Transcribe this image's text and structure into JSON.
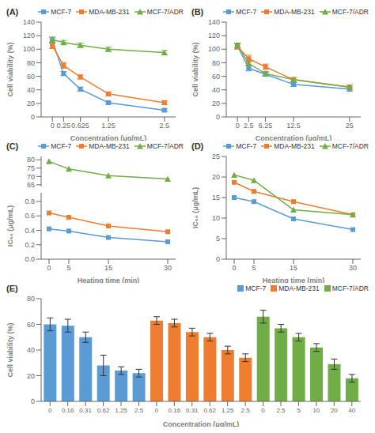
{
  "chart_data": [
    {
      "type": "line",
      "title": "(A)",
      "x": [
        0,
        0.25,
        0.625,
        1.25,
        2.5
      ],
      "xlim": [
        -0.25,
        2.75
      ],
      "xticks": [
        0,
        0.25,
        0.625,
        1.25,
        2.5
      ],
      "xlabel": "Concentration (μg/mL)",
      "ylabel": "Cell viability (%)",
      "ylim": [
        0,
        140
      ],
      "yticks": [
        0,
        20,
        40,
        60,
        80,
        100,
        120,
        140
      ],
      "grid": false,
      "legend": "upper right",
      "series": [
        {
          "name": "MCF-7",
          "color": "#5B9BD5",
          "marker": "square",
          "values": [
            113,
            64,
            41,
            21,
            10
          ],
          "errors": [
            4,
            3,
            3,
            2,
            2
          ]
        },
        {
          "name": "MDA-MB-231",
          "color": "#ED7D31",
          "marker": "square",
          "values": [
            105,
            76,
            59,
            34,
            21
          ],
          "errors": [
            4,
            4,
            3,
            3,
            3
          ]
        },
        {
          "name": "MCF-7/ADR",
          "color": "#70AD47",
          "marker": "triangle",
          "values": [
            114,
            110,
            106,
            100,
            95
          ],
          "errors": [
            4,
            3,
            3,
            3,
            3
          ]
        }
      ]
    },
    {
      "type": "line",
      "title": "(B)",
      "x": [
        0,
        2.5,
        6.25,
        12.5,
        25
      ],
      "xlim": [
        -2.5,
        27.5
      ],
      "xticks": [
        0,
        2.5,
        6.25,
        12.5,
        25
      ],
      "xlabel": "Concentration (μg/mL)",
      "ylabel": "Cell viability (%)",
      "ylim": [
        0,
        140
      ],
      "yticks": [
        0,
        20,
        40,
        60,
        80,
        100,
        120,
        140
      ],
      "grid": false,
      "legend": "upper right",
      "series": [
        {
          "name": "MCF-7",
          "color": "#5B9BD5",
          "marker": "square",
          "values": [
            105,
            72,
            63,
            48,
            41
          ],
          "errors": [
            4,
            4,
            3,
            3,
            3
          ]
        },
        {
          "name": "MDA-MB-231",
          "color": "#ED7D31",
          "marker": "square",
          "values": [
            104,
            86,
            74,
            55,
            44
          ],
          "errors": [
            4,
            5,
            4,
            3,
            3
          ]
        },
        {
          "name": "MCF-7/ADR",
          "color": "#70AD47",
          "marker": "triangle",
          "values": [
            106,
            79,
            64,
            55,
            44
          ],
          "errors": [
            3,
            3,
            3,
            3,
            3
          ]
        }
      ]
    },
    {
      "type": "line",
      "title": "(C)",
      "x": [
        0,
        5,
        15,
        30
      ],
      "xlim": [
        -2,
        32
      ],
      "xticks": [
        0,
        5,
        15,
        30
      ],
      "xlabel": "Heating time (min)",
      "ylabel": "IC₅₀ (μg/mL)",
      "ylim": [
        0,
        0.92
      ],
      "yticks": [
        {
          "value": 0,
          "label": "0.0"
        },
        0.2,
        0.4,
        0.6,
        0.8
      ],
      "y2lim": [
        64,
        82
      ],
      "y2ticks": [
        65,
        70,
        75,
        80
      ],
      "grid": false,
      "legend": "upper right",
      "series": [
        {
          "name": "MCF-7",
          "color": "#5B9BD5",
          "marker": "square",
          "values": [
            0.42,
            0.39,
            0.3,
            0.24
          ]
        },
        {
          "name": "MDA-MB-231",
          "color": "#ED7D31",
          "marker": "square",
          "values": [
            0.64,
            0.58,
            0.46,
            0.38
          ]
        },
        {
          "name": "MCF-7/ADR",
          "color": "#70AD47",
          "marker": "triangle",
          "values": [
            79,
            74.5,
            70.5,
            68.5
          ],
          "axis": "y2"
        }
      ]
    },
    {
      "type": "line",
      "title": "(D)",
      "x": [
        0,
        5,
        15,
        30
      ],
      "xlim": [
        -2,
        32
      ],
      "xticks": [
        0,
        5,
        15,
        30
      ],
      "xlabel": "Heating time (min)",
      "ylabel": "IC₅₀ (μg/mL)",
      "ylim": [
        0,
        25
      ],
      "yticks": [
        0,
        5,
        10,
        15,
        20,
        25
      ],
      "grid": false,
      "legend": "upper right",
      "series": [
        {
          "name": "MCF-7",
          "color": "#5B9BD5",
          "marker": "square",
          "values": [
            15,
            14,
            9.8,
            7.2
          ]
        },
        {
          "name": "MDA-MB-231",
          "color": "#ED7D31",
          "marker": "square",
          "values": [
            18.7,
            16.5,
            14,
            10.8
          ]
        },
        {
          "name": "MCF-7/ADR",
          "color": "#70AD47",
          "marker": "triangle",
          "values": [
            20.5,
            19.2,
            12,
            10.8
          ]
        }
      ]
    },
    {
      "type": "bar",
      "title": "(E)",
      "categories": [
        "0",
        "0.16",
        "0.31",
        "0.62",
        "1.25",
        "2.5",
        "0",
        "0.16",
        "0.31",
        "0.62",
        "1.25",
        "2.5",
        "0",
        "2.5",
        "5",
        "10",
        "20",
        "40"
      ],
      "xlabel": "Concentration (μg/mL)",
      "ylabel": "Cell viability (%)",
      "ylim": [
        0,
        80
      ],
      "yticks": [
        0,
        20,
        40,
        60,
        80
      ],
      "grid": false,
      "legend": "upper right",
      "series": [
        {
          "name": "MCF-7",
          "color": "#5B9BD5",
          "values": [
            60,
            59,
            50,
            28,
            24,
            22,
            null,
            null,
            null,
            null,
            null,
            null,
            null,
            null,
            null,
            null,
            null,
            null
          ],
          "errors": [
            5,
            5,
            4,
            8,
            3,
            3,
            null,
            null,
            null,
            null,
            null,
            null,
            null,
            null,
            null,
            null,
            null,
            null
          ]
        },
        {
          "name": "MDA-MB-231",
          "color": "#ED7D31",
          "values": [
            null,
            null,
            null,
            null,
            null,
            null,
            63,
            61,
            54,
            50,
            40,
            34,
            null,
            null,
            null,
            null,
            null,
            null
          ],
          "errors": [
            null,
            null,
            null,
            null,
            null,
            null,
            3,
            3,
            3,
            3,
            3,
            3,
            null,
            null,
            null,
            null,
            null,
            null
          ]
        },
        {
          "name": "MCF-7/ADR",
          "color": "#70AD47",
          "values": [
            null,
            null,
            null,
            null,
            null,
            null,
            null,
            null,
            null,
            null,
            null,
            null,
            66,
            57,
            50,
            42,
            29,
            18
          ],
          "errors": [
            null,
            null,
            null,
            null,
            null,
            null,
            null,
            null,
            null,
            null,
            null,
            null,
            5,
            3,
            3,
            3,
            4,
            3
          ]
        }
      ]
    }
  ]
}
